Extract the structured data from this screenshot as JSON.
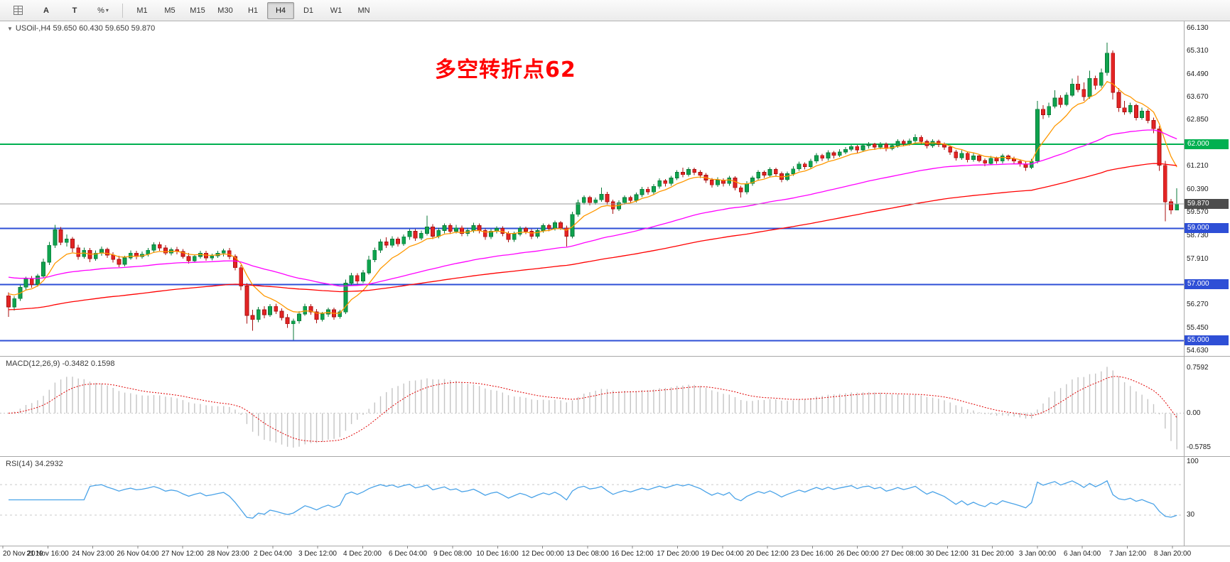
{
  "toolbar": {
    "tool_a": "A",
    "tool_t": "T",
    "icons": {
      "percent": "%",
      "caret": "▾",
      "collapse": "▼"
    },
    "timeframes": [
      "M1",
      "M5",
      "M15",
      "M30",
      "H1",
      "H4",
      "D1",
      "W1",
      "MN"
    ],
    "active_timeframe": "H4"
  },
  "chart": {
    "symbol_readout": "USOil-,H4 59.650 60.430 59.650 59.870",
    "annotation": {
      "text": "多空转折点62",
      "color": "#FF0000"
    },
    "current_price": {
      "price": 59.87,
      "label": "59.870",
      "line_color": "#9A9A9A",
      "badge_bg": "#4D4D4D"
    },
    "hlines": [
      {
        "price": 62.0,
        "color": "#00B050",
        "width": 2,
        "label": "62.000"
      },
      {
        "price": 59.0,
        "color": "#2E4FD6",
        "width": 2,
        "label": "59.000"
      },
      {
        "price": 57.0,
        "color": "#2E4FD6",
        "width": 2,
        "label": "57.000"
      },
      {
        "price": 55.0,
        "color": "#2E4FD6",
        "width": 2,
        "label": "55.000"
      }
    ],
    "price_axis": {
      "ticks": [
        {
          "label": "66.130",
          "price": 66.13
        },
        {
          "label": "65.310",
          "price": 65.31
        },
        {
          "label": "64.490",
          "price": 64.49
        },
        {
          "label": "63.670",
          "price": 63.67
        },
        {
          "label": "62.850",
          "price": 62.85
        },
        {
          "label": "61.210",
          "price": 61.21
        },
        {
          "label": "60.390",
          "price": 60.39
        },
        {
          "label": "59.570",
          "price": 59.57
        },
        {
          "label": "58.730",
          "price": 58.73
        },
        {
          "label": "57.910",
          "price": 57.91
        },
        {
          "label": "56.270",
          "price": 56.27
        },
        {
          "label": "55.450",
          "price": 55.45
        },
        {
          "label": "54.630",
          "price": 54.63
        }
      ],
      "badges": [
        {
          "label": "62.000",
          "price": 62.0,
          "bg": "#00B050"
        },
        {
          "label": "59.870",
          "price": 59.87,
          "bg": "#4D4D4D"
        },
        {
          "label": "59.000",
          "price": 59.0,
          "bg": "#2E4FD6"
        },
        {
          "label": "57.000",
          "price": 57.0,
          "bg": "#2E4FD6"
        },
        {
          "label": "55.000",
          "price": 55.0,
          "bg": "#2E4FD6"
        }
      ]
    },
    "time_axis": [
      "20 Nov 2019",
      "21 Nov 16:00",
      "24 Nov 23:00",
      "26 Nov 04:00",
      "27 Nov 12:00",
      "28 Nov 23:00",
      "2 Dec 04:00",
      "3 Dec 12:00",
      "4 Dec 20:00",
      "6 Dec 04:00",
      "9 Dec 08:00",
      "10 Dec 16:00",
      "12 Dec 00:00",
      "13 Dec 08:00",
      "16 Dec 12:00",
      "17 Dec 20:00",
      "19 Dec 04:00",
      "20 Dec 12:00",
      "23 Dec 16:00",
      "26 Dec 00:00",
      "27 Dec 08:00",
      "30 Dec 12:00",
      "31 Dec 20:00",
      "3 Jan 00:00",
      "6 Jan 04:00",
      "7 Jan 12:00",
      "8 Jan 20:00"
    ],
    "macd": {
      "label": "MACD(12,26,9) -0.3482 0.1598",
      "value": "-0.3482",
      "signal_value": "0.1598",
      "scale_labels": [
        {
          "label": "0.7592",
          "value": 0.7592
        },
        {
          "label": "0.00",
          "value": 0.0
        },
        {
          "label": "-0.5785",
          "value": -0.5785
        }
      ]
    },
    "rsi": {
      "label": "RSI(14) 34.2932",
      "value": "34.2932",
      "scale_labels": [
        {
          "label": "100",
          "value": 100
        },
        {
          "label": "30",
          "value": 30
        }
      ],
      "levels": [
        70,
        30
      ]
    }
  },
  "chart_data": {
    "type": "candlestick",
    "symbol": "USOil",
    "timeframe": "H4",
    "title": "USOil H4 with MACD(12,26,9) and RSI(14)",
    "ohlc_readout": {
      "open": "59.650",
      "high": "60.430",
      "low": "59.650",
      "close": "59.870"
    },
    "price_range": [
      54.63,
      66.13
    ],
    "colors": {
      "up": "#0FA34E",
      "up_border": "#0A7A38",
      "down": "#E32424",
      "down_border": "#A81111",
      "macd_hist": "#C4C4C4",
      "macd_signal": "#E00000",
      "rsi_line": "#4AA3E8"
    },
    "overlays": [
      {
        "name": "ma-fast",
        "color": "#FF9800",
        "period": 8,
        "seed": 56.8
      },
      {
        "name": "ma-mid",
        "color": "#FF00FF",
        "period": 55,
        "seed": 57.3
      },
      {
        "name": "ma-slow",
        "color": "#FF0000",
        "period": 120,
        "seed": 56.1
      }
    ],
    "candles": [
      [
        56.6,
        56.72,
        55.85,
        56.2
      ],
      [
        56.2,
        56.58,
        56.08,
        56.5
      ],
      [
        56.5,
        56.98,
        56.42,
        56.9
      ],
      [
        56.9,
        57.28,
        56.8,
        57.2
      ],
      [
        57.2,
        57.3,
        56.88,
        57.0
      ],
      [
        57.0,
        57.38,
        56.92,
        57.3
      ],
      [
        57.3,
        57.92,
        57.22,
        57.8
      ],
      [
        57.8,
        58.52,
        57.7,
        58.4
      ],
      [
        58.4,
        59.12,
        58.3,
        58.95
      ],
      [
        58.95,
        59.05,
        58.4,
        58.5
      ],
      [
        58.5,
        58.78,
        58.35,
        58.62
      ],
      [
        58.62,
        58.7,
        58.15,
        58.3
      ],
      [
        58.3,
        58.42,
        57.88,
        58.0
      ],
      [
        58.0,
        58.32,
        57.92,
        58.22
      ],
      [
        58.22,
        58.3,
        57.8,
        57.92
      ],
      [
        57.92,
        58.22,
        57.85,
        58.12
      ],
      [
        58.12,
        58.35,
        58.02,
        58.25
      ],
      [
        58.25,
        58.32,
        57.95,
        58.05
      ],
      [
        58.05,
        58.15,
        57.78,
        57.9
      ],
      [
        57.9,
        58.02,
        57.62,
        57.72
      ],
      [
        57.72,
        58.02,
        57.65,
        57.95
      ],
      [
        57.95,
        58.22,
        57.88,
        58.12
      ],
      [
        58.12,
        58.2,
        57.9,
        58.0
      ],
      [
        58.0,
        58.18,
        57.92,
        58.08
      ],
      [
        58.08,
        58.3,
        58.0,
        58.22
      ],
      [
        58.22,
        58.5,
        58.12,
        58.42
      ],
      [
        58.42,
        58.52,
        58.2,
        58.3
      ],
      [
        58.3,
        58.4,
        58.05,
        58.12
      ],
      [
        58.12,
        58.32,
        58.04,
        58.24
      ],
      [
        58.24,
        58.34,
        58.08,
        58.18
      ],
      [
        58.18,
        58.26,
        57.92,
        58.0
      ],
      [
        58.0,
        58.12,
        57.75,
        57.85
      ],
      [
        57.85,
        58.08,
        57.78,
        58.0
      ],
      [
        58.0,
        58.2,
        57.92,
        58.12
      ],
      [
        58.12,
        58.2,
        57.85,
        57.95
      ],
      [
        57.95,
        58.1,
        57.86,
        58.02
      ],
      [
        58.02,
        58.2,
        57.95,
        58.12
      ],
      [
        58.12,
        58.28,
        58.0,
        58.2
      ],
      [
        58.2,
        58.3,
        57.9,
        58.0
      ],
      [
        58.0,
        58.08,
        57.5,
        57.6
      ],
      [
        57.6,
        57.7,
        56.8,
        56.95
      ],
      [
        56.95,
        57.05,
        55.6,
        55.9
      ],
      [
        55.9,
        56.1,
        55.35,
        55.75
      ],
      [
        55.75,
        56.2,
        55.65,
        56.1
      ],
      [
        56.1,
        56.22,
        55.8,
        55.92
      ],
      [
        55.92,
        56.3,
        55.85,
        56.22
      ],
      [
        56.22,
        56.32,
        55.95,
        56.05
      ],
      [
        56.05,
        56.15,
        55.72,
        55.82
      ],
      [
        55.82,
        55.95,
        55.45,
        55.6
      ],
      [
        55.6,
        55.78,
        55.02,
        55.7
      ],
      [
        55.7,
        56.05,
        55.6,
        55.95
      ],
      [
        55.95,
        56.32,
        55.88,
        56.22
      ],
      [
        56.22,
        56.3,
        55.92,
        56.02
      ],
      [
        56.02,
        56.12,
        55.62,
        55.75
      ],
      [
        55.75,
        56.02,
        55.68,
        55.95
      ],
      [
        55.95,
        56.18,
        55.85,
        56.1
      ],
      [
        56.1,
        56.18,
        55.75,
        55.85
      ],
      [
        55.85,
        56.1,
        55.78,
        56.02
      ],
      [
        56.02,
        57.18,
        55.95,
        57.05
      ],
      [
        57.05,
        57.42,
        56.95,
        57.32
      ],
      [
        57.32,
        57.4,
        57.02,
        57.12
      ],
      [
        57.12,
        57.52,
        57.05,
        57.42
      ],
      [
        57.42,
        58.02,
        57.35,
        57.88
      ],
      [
        57.88,
        58.32,
        57.8,
        58.22
      ],
      [
        58.22,
        58.62,
        58.12,
        58.52
      ],
      [
        58.52,
        58.68,
        58.3,
        58.4
      ],
      [
        58.4,
        58.72,
        58.32,
        58.62
      ],
      [
        58.62,
        58.7,
        58.35,
        58.45
      ],
      [
        58.45,
        58.78,
        58.38,
        58.7
      ],
      [
        58.7,
        58.98,
        58.6,
        58.9
      ],
      [
        58.9,
        58.98,
        58.55,
        58.65
      ],
      [
        58.65,
        58.92,
        58.58,
        58.82
      ],
      [
        58.82,
        59.45,
        58.75,
        59.05
      ],
      [
        59.05,
        59.15,
        58.62,
        58.72
      ],
      [
        58.72,
        59.02,
        58.65,
        58.92
      ],
      [
        58.92,
        59.18,
        58.82,
        59.1
      ],
      [
        59.1,
        59.18,
        58.8,
        58.9
      ],
      [
        58.9,
        59.12,
        58.82,
        59.02
      ],
      [
        59.02,
        59.1,
        58.72,
        58.82
      ],
      [
        58.82,
        59.02,
        58.72,
        58.92
      ],
      [
        58.92,
        59.2,
        58.85,
        59.1
      ],
      [
        59.1,
        59.18,
        58.82,
        58.92
      ],
      [
        58.92,
        59.0,
        58.6,
        58.7
      ],
      [
        58.7,
        58.98,
        58.62,
        58.9
      ],
      [
        58.9,
        59.08,
        58.82,
        59.0
      ],
      [
        59.0,
        59.08,
        58.72,
        58.82
      ],
      [
        58.82,
        58.9,
        58.5,
        58.6
      ],
      [
        58.6,
        58.88,
        58.52,
        58.8
      ],
      [
        58.8,
        59.08,
        58.72,
        59.0
      ],
      [
        59.0,
        59.06,
        58.8,
        58.9
      ],
      [
        58.9,
        58.98,
        58.62,
        58.72
      ],
      [
        58.72,
        59.0,
        58.65,
        58.92
      ],
      [
        58.92,
        59.18,
        58.85,
        59.1
      ],
      [
        59.1,
        59.16,
        58.9,
        59.0
      ],
      [
        59.0,
        59.28,
        58.92,
        59.2
      ],
      [
        59.2,
        59.26,
        58.95,
        59.02
      ],
      [
        59.02,
        59.1,
        58.35,
        58.72
      ],
      [
        58.72,
        59.6,
        58.65,
        59.5
      ],
      [
        59.5,
        60.02,
        59.42,
        59.92
      ],
      [
        59.92,
        60.18,
        59.85,
        60.1
      ],
      [
        60.1,
        60.16,
        59.82,
        59.92
      ],
      [
        59.92,
        60.1,
        59.85,
        60.02
      ],
      [
        60.02,
        60.45,
        59.95,
        60.22
      ],
      [
        60.22,
        60.3,
        59.85,
        59.95
      ],
      [
        59.95,
        60.02,
        59.52,
        59.7
      ],
      [
        59.7,
        60.0,
        59.62,
        59.92
      ],
      [
        59.92,
        60.18,
        59.85,
        60.1
      ],
      [
        60.1,
        60.16,
        59.9,
        60.0
      ],
      [
        60.0,
        60.28,
        59.92,
        60.2
      ],
      [
        60.2,
        60.48,
        60.12,
        60.4
      ],
      [
        60.4,
        60.48,
        60.2,
        60.3
      ],
      [
        60.3,
        60.58,
        60.22,
        60.5
      ],
      [
        60.5,
        60.78,
        60.42,
        60.7
      ],
      [
        60.7,
        60.76,
        60.5,
        60.6
      ],
      [
        60.6,
        60.88,
        60.52,
        60.8
      ],
      [
        60.8,
        61.08,
        60.72,
        61.0
      ],
      [
        61.0,
        61.16,
        60.82,
        60.92
      ],
      [
        60.92,
        61.18,
        60.85,
        61.1
      ],
      [
        61.1,
        61.16,
        60.9,
        61.0
      ],
      [
        61.0,
        61.08,
        60.8,
        60.9
      ],
      [
        60.9,
        60.98,
        60.62,
        60.72
      ],
      [
        60.72,
        60.8,
        60.45,
        60.55
      ],
      [
        60.55,
        60.82,
        60.48,
        60.72
      ],
      [
        60.72,
        60.78,
        60.5,
        60.6
      ],
      [
        60.6,
        60.88,
        60.52,
        60.8
      ],
      [
        60.8,
        60.86,
        60.35,
        60.45
      ],
      [
        60.45,
        60.52,
        60.1,
        60.3
      ],
      [
        60.3,
        60.68,
        60.22,
        60.6
      ],
      [
        60.6,
        60.88,
        60.52,
        60.8
      ],
      [
        60.8,
        61.08,
        60.72,
        61.0
      ],
      [
        61.0,
        61.06,
        60.8,
        60.9
      ],
      [
        60.9,
        61.18,
        60.82,
        61.1
      ],
      [
        61.1,
        61.16,
        60.85,
        60.95
      ],
      [
        60.95,
        61.02,
        60.65,
        60.75
      ],
      [
        60.75,
        61.02,
        60.68,
        60.95
      ],
      [
        60.95,
        61.22,
        60.88,
        61.12
      ],
      [
        61.12,
        61.38,
        61.05,
        61.3
      ],
      [
        61.3,
        61.36,
        61.1,
        61.2
      ],
      [
        61.2,
        61.48,
        61.12,
        61.4
      ],
      [
        61.4,
        61.68,
        61.32,
        61.6
      ],
      [
        61.6,
        61.66,
        61.4,
        61.5
      ],
      [
        61.5,
        61.78,
        61.42,
        61.7
      ],
      [
        61.7,
        61.76,
        61.5,
        61.6
      ],
      [
        61.6,
        61.82,
        61.55,
        61.72
      ],
      [
        61.72,
        61.9,
        61.65,
        61.82
      ],
      [
        61.82,
        61.98,
        61.75,
        61.92
      ],
      [
        61.92,
        61.98,
        61.7,
        61.8
      ],
      [
        61.8,
        62.02,
        61.72,
        61.95
      ],
      [
        61.95,
        62.08,
        61.85,
        62.0
      ],
      [
        62.0,
        62.05,
        61.8,
        61.9
      ],
      [
        61.9,
        62.08,
        61.82,
        62.0
      ],
      [
        62.0,
        62.06,
        61.75,
        61.85
      ],
      [
        61.85,
        62.02,
        61.78,
        61.95
      ],
      [
        61.95,
        62.18,
        61.88,
        62.1
      ],
      [
        62.1,
        62.16,
        61.92,
        62.02
      ],
      [
        62.02,
        62.2,
        61.95,
        62.12
      ],
      [
        62.12,
        62.35,
        62.05,
        62.25
      ],
      [
        62.25,
        62.32,
        62.0,
        62.1
      ],
      [
        62.1,
        62.16,
        61.85,
        61.95
      ],
      [
        61.95,
        62.18,
        61.88,
        62.1
      ],
      [
        62.1,
        62.16,
        61.9,
        62.0
      ],
      [
        62.0,
        62.06,
        61.8,
        61.9
      ],
      [
        61.9,
        61.96,
        61.62,
        61.72
      ],
      [
        61.72,
        61.8,
        61.42,
        61.52
      ],
      [
        61.52,
        61.78,
        61.45,
        61.68
      ],
      [
        61.68,
        61.74,
        61.35,
        61.45
      ],
      [
        61.45,
        61.7,
        61.38,
        61.58
      ],
      [
        61.58,
        61.64,
        61.35,
        61.42
      ],
      [
        61.42,
        61.5,
        61.22,
        61.32
      ],
      [
        61.32,
        61.58,
        61.25,
        61.5
      ],
      [
        61.5,
        61.56,
        61.3,
        61.4
      ],
      [
        61.4,
        61.66,
        61.32,
        61.58
      ],
      [
        61.58,
        61.64,
        61.4,
        61.48
      ],
      [
        61.48,
        61.56,
        61.3,
        61.4
      ],
      [
        61.4,
        61.46,
        61.2,
        61.3
      ],
      [
        61.3,
        61.38,
        61.05,
        61.18
      ],
      [
        61.18,
        61.48,
        61.12,
        61.4
      ],
      [
        61.4,
        63.55,
        61.32,
        63.25
      ],
      [
        63.25,
        63.4,
        62.9,
        63.05
      ],
      [
        63.05,
        63.48,
        62.95,
        63.35
      ],
      [
        63.35,
        63.92,
        63.28,
        63.65
      ],
      [
        63.65,
        63.75,
        63.3,
        63.42
      ],
      [
        63.42,
        63.85,
        63.35,
        63.75
      ],
      [
        63.75,
        64.35,
        63.68,
        64.15
      ],
      [
        64.15,
        64.45,
        63.85,
        63.95
      ],
      [
        63.95,
        64.2,
        63.55,
        63.7
      ],
      [
        63.7,
        64.62,
        63.62,
        64.35
      ],
      [
        64.35,
        64.45,
        63.95,
        64.1
      ],
      [
        64.1,
        64.7,
        64.02,
        64.55
      ],
      [
        64.55,
        65.62,
        64.45,
        65.25
      ],
      [
        65.25,
        65.35,
        63.6,
        63.85
      ],
      [
        63.85,
        64.0,
        63.15,
        63.3
      ],
      [
        63.3,
        63.55,
        63.05,
        63.15
      ],
      [
        63.15,
        63.48,
        63.08,
        63.38
      ],
      [
        63.38,
        63.45,
        62.85,
        62.95
      ],
      [
        62.95,
        63.3,
        62.88,
        63.18
      ],
      [
        63.18,
        63.25,
        62.75,
        62.85
      ],
      [
        62.85,
        62.95,
        62.4,
        62.55
      ],
      [
        62.55,
        62.65,
        61.05,
        61.25
      ],
      [
        61.25,
        61.4,
        59.25,
        59.95
      ],
      [
        59.95,
        60.05,
        59.5,
        59.65
      ],
      [
        59.65,
        60.43,
        59.65,
        59.87
      ]
    ]
  }
}
